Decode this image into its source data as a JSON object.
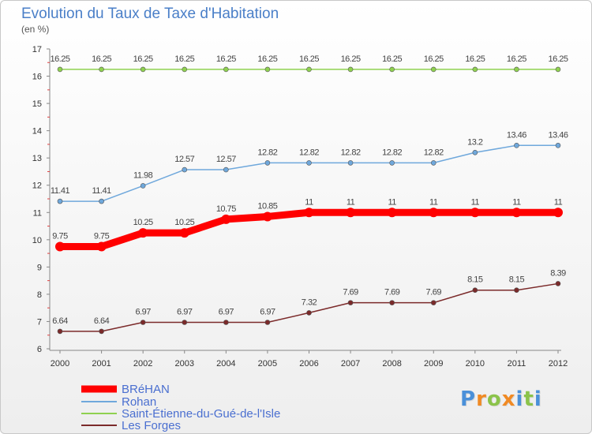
{
  "title": "Evolution du Taux de Taxe d'Habitation",
  "subtitle": "(en %)",
  "logo_text": "Proxiti",
  "chart_data": {
    "type": "line",
    "title": "Evolution du Taux de Taxe d'Habitation",
    "ylabel": "(en %)",
    "xlabel": "",
    "x": [
      "2000",
      "2001",
      "2002",
      "2003",
      "2004",
      "2005",
      "2006",
      "2007",
      "2008",
      "2009",
      "2010",
      "2011",
      "2012"
    ],
    "ylim": [
      6,
      17
    ],
    "yticks": [
      6,
      7,
      8,
      9,
      10,
      11,
      12,
      13,
      14,
      15,
      16,
      17
    ],
    "grid": false,
    "legend_position": "bottom-left",
    "series": [
      {
        "name": "BRéHAN",
        "color": "#ff0000",
        "values": [
          9.75,
          9.75,
          10.25,
          10.25,
          10.75,
          10.85,
          11,
          11,
          11,
          11,
          11,
          11,
          11
        ],
        "labels": [
          "9.75",
          "9.75",
          "10.25",
          "10.25",
          "10.75",
          "10.85",
          "11",
          "11",
          "11",
          "11",
          "11",
          "11",
          "11"
        ]
      },
      {
        "name": "Rohan",
        "color": "#6fa8dc",
        "values": [
          11.41,
          11.41,
          11.98,
          12.57,
          12.57,
          12.82,
          12.82,
          12.82,
          12.82,
          12.82,
          13.2,
          13.46,
          13.46
        ],
        "labels": [
          "11.41",
          "11.41",
          "11.98",
          "12.57",
          "12.57",
          "12.82",
          "12.82",
          "12.82",
          "12.82",
          "12.82",
          "13.2",
          "13.46",
          "13.46"
        ]
      },
      {
        "name": "Saint-Étienne-du-Gué-de-l'Isle",
        "color": "#8fd14f",
        "values": [
          16.25,
          16.25,
          16.25,
          16.25,
          16.25,
          16.25,
          16.25,
          16.25,
          16.25,
          16.25,
          16.25,
          16.25,
          16.25
        ],
        "labels": [
          "16.25",
          "16.25",
          "16.25",
          "16.25",
          "16.25",
          "16.25",
          "16.25",
          "16.25",
          "16.25",
          "16.25",
          "16.25",
          "16.25",
          "16.25"
        ]
      },
      {
        "name": "Les Forges",
        "color": "#7b2a2a",
        "values": [
          6.64,
          6.64,
          6.97,
          6.97,
          6.97,
          6.97,
          7.32,
          7.69,
          7.69,
          7.69,
          8.15,
          8.15,
          8.39
        ],
        "labels": [
          "6.64",
          "6.64",
          "6.97",
          "6.97",
          "6.97",
          "6.97",
          "7.32",
          "7.69",
          "7.69",
          "7.69",
          "8.15",
          "8.15",
          "8.39"
        ]
      }
    ]
  },
  "logo_colors": [
    "#4a90d9",
    "#f08a24",
    "#8bc34a",
    "#f08a24",
    "#4a90d9",
    "#8bc34a",
    "#4a90d9"
  ]
}
